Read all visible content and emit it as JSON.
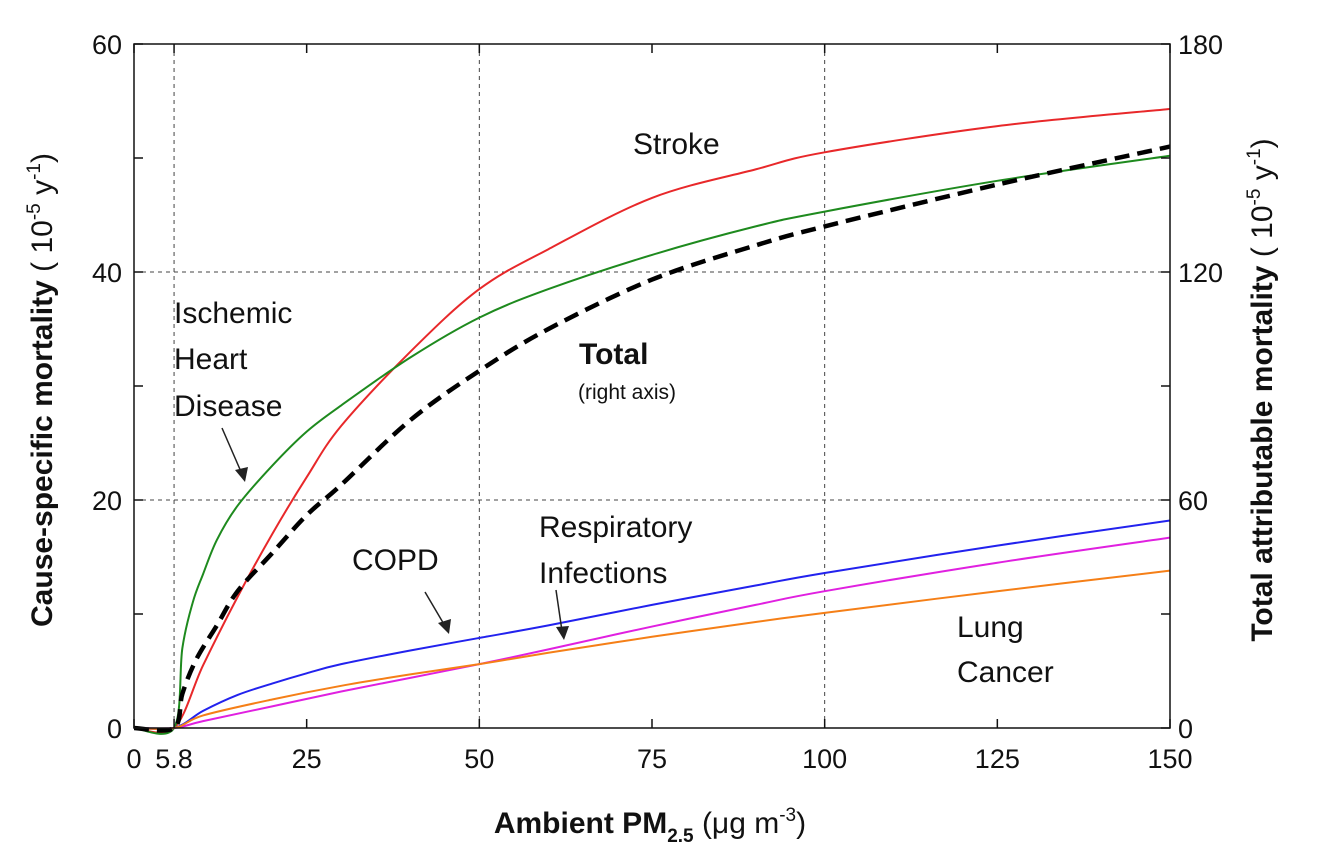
{
  "chart_data": {
    "type": "line",
    "x_axis": {
      "label_main": "Ambient PM",
      "label_sub": "2.5",
      "label_unit": " (μg m",
      "label_unit_sup": "-3",
      "label_unit_end": ")",
      "range": [
        0,
        150
      ],
      "ticks": [
        0,
        5.8,
        25,
        50,
        75,
        100,
        125,
        150
      ],
      "tick_labels": [
        "0",
        "5.8",
        "25",
        "50",
        "75",
        "100",
        "125",
        "150"
      ],
      "gridlines": [
        5.8,
        50,
        100
      ]
    },
    "y_axis_left": {
      "label_main": "Cause-specific mortality",
      "label_unit_pre": " ( 10",
      "label_unit_sup1": "-5",
      "label_unit_mid": " y",
      "label_unit_sup2": "-1",
      "label_unit_end": ")",
      "range": [
        0,
        60
      ],
      "ticks": [
        0,
        20,
        40,
        60
      ],
      "tick_labels": [
        "0",
        "20",
        "40",
        "60"
      ],
      "minor_ticks": [
        10,
        30,
        50
      ],
      "gridlines": [
        20,
        40
      ]
    },
    "y_axis_right": {
      "label_main": "Total attributable mortality",
      "label_unit_pre": " ( 10",
      "label_unit_sup1": "-5",
      "label_unit_mid": " y",
      "label_unit_sup2": "-1",
      "label_unit_end": ")",
      "range": [
        0,
        180
      ],
      "ticks": [
        0,
        60,
        120,
        180
      ],
      "tick_labels": [
        "0",
        "60",
        "120",
        "180"
      ],
      "minor_ticks": [
        30,
        90,
        150
      ]
    },
    "series": [
      {
        "name": "Stroke",
        "color": "#e8282a",
        "axis": "left",
        "dashed": false,
        "x": [
          0,
          5.8,
          10,
          15,
          20,
          25,
          30,
          40,
          50,
          60,
          75,
          90,
          100,
          125,
          150
        ],
        "y": [
          0,
          0,
          5.5,
          11.5,
          17,
          22,
          26.5,
          33,
          38.5,
          42,
          46.5,
          49,
          50.5,
          52.8,
          54.3
        ]
      },
      {
        "name": "Ischemic Heart Disease",
        "color": "#1e8a1e",
        "axis": "left",
        "dashed": false,
        "x": [
          0,
          5.8,
          7,
          8.5,
          10,
          12,
          15,
          20,
          25,
          30,
          40,
          50,
          60,
          75,
          90,
          100,
          125,
          150
        ],
        "y": [
          0,
          0,
          7,
          11,
          13.5,
          16.5,
          19.5,
          23,
          26,
          28.3,
          32.5,
          36,
          38.5,
          41.5,
          44,
          45.3,
          48,
          50.2
        ]
      },
      {
        "name": "Total (right axis)",
        "color": "#000000",
        "axis": "right",
        "dashed": true,
        "x": [
          0,
          5.8,
          7,
          9,
          12,
          15,
          20,
          25,
          30,
          40,
          50,
          60,
          75,
          90,
          100,
          125,
          150
        ],
        "y": [
          0,
          0,
          9,
          18,
          27,
          36,
          46,
          56,
          64,
          81,
          94,
          105,
          118,
          127,
          132,
          143,
          153
        ]
      },
      {
        "name": "COPD",
        "color": "#2222ee",
        "axis": "left",
        "dashed": false,
        "x": [
          0,
          5.8,
          10,
          15,
          20,
          25,
          30,
          40,
          50,
          60,
          75,
          90,
          100,
          125,
          150
        ],
        "y": [
          0,
          0,
          1.5,
          2.9,
          3.9,
          4.8,
          5.6,
          6.8,
          7.9,
          9.0,
          10.8,
          12.5,
          13.6,
          16.0,
          18.2
        ]
      },
      {
        "name": "Respiratory Infections",
        "color": "#e020e0",
        "axis": "left",
        "dashed": false,
        "x": [
          0,
          5.8,
          10,
          20,
          30,
          40,
          50,
          60,
          75,
          90,
          100,
          125,
          150
        ],
        "y": [
          0,
          0,
          0.6,
          1.9,
          3.2,
          4.4,
          5.6,
          6.9,
          8.9,
          10.8,
          12.0,
          14.5,
          16.7
        ]
      },
      {
        "name": "Lung Cancer",
        "color": "#f57f17",
        "axis": "left",
        "dashed": false,
        "x": [
          0,
          5.8,
          10,
          20,
          30,
          40,
          50,
          60,
          75,
          90,
          100,
          125,
          150
        ],
        "y": [
          0,
          0,
          1.1,
          2.5,
          3.7,
          4.7,
          5.6,
          6.6,
          8.0,
          9.3,
          10.1,
          12.0,
          13.8
        ]
      }
    ],
    "annotations": {
      "stroke": "Stroke",
      "ihd_line1": "Ischemic",
      "ihd_line2": "Heart",
      "ihd_line3": "Disease",
      "total": "Total",
      "total_note": "(right axis)",
      "copd": "COPD",
      "resp_line1": "Respiratory",
      "resp_line2": "Infections",
      "lung_line1": "Lung",
      "lung_line2": "Cancer"
    }
  }
}
